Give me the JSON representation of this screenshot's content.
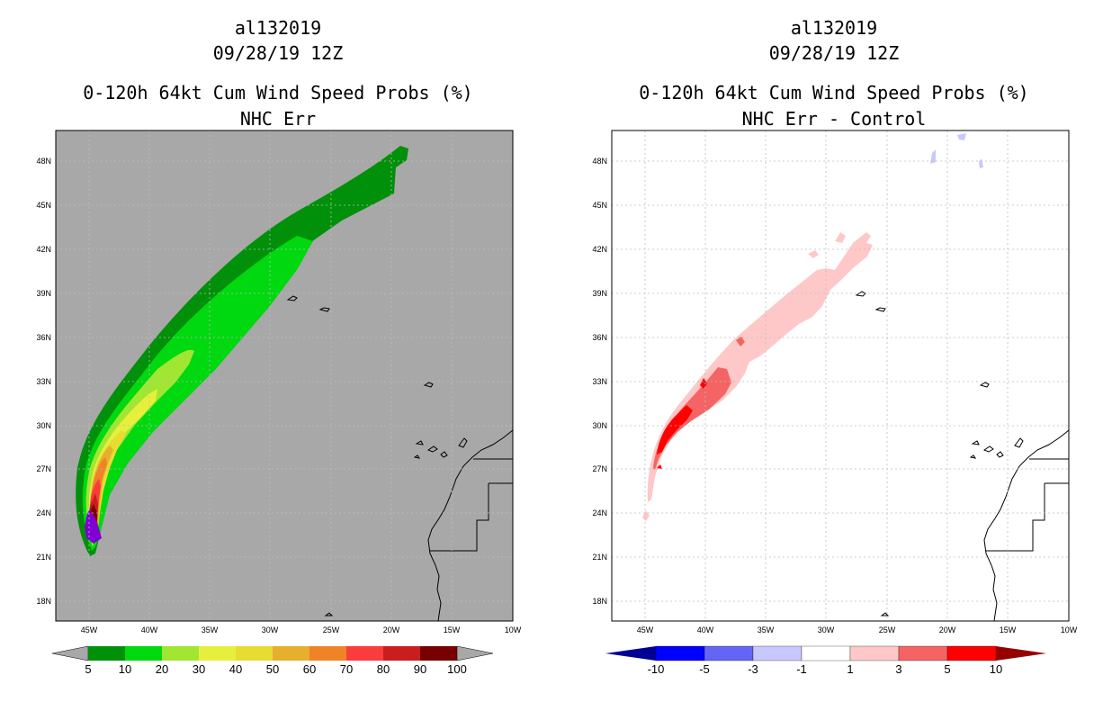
{
  "panels": [
    {
      "storm_id": "al132019",
      "datetime": "09/28/19 12Z",
      "product": "0-120h 64kt Cum Wind Speed Probs (%)",
      "subtitle": "NHC Err",
      "colorbar": {
        "labels": [
          "5",
          "10",
          "20",
          "30",
          "40",
          "50",
          "60",
          "70",
          "80",
          "90",
          "100"
        ],
        "colors": [
          "#00900a",
          "#00d80f",
          "#a0e632",
          "#e6f03c",
          "#e6dc32",
          "#e6af2d",
          "#f08228",
          "#fa3c3c",
          "#c81e1e",
          "#780000",
          "#8000d2"
        ]
      },
      "chart_data": {
        "type": "heatmap",
        "title": "0-120h 64kt Cum Wind Speed Probs (%)",
        "xlim": [
          -47,
          -10
        ],
        "ylim": [
          17,
          50
        ],
        "x_ticks": [
          "45W",
          "40W",
          "35W",
          "30W",
          "25W",
          "20W",
          "15W",
          "10W"
        ],
        "y_ticks": [
          "18N",
          "21N",
          "24N",
          "27N",
          "30N",
          "33N",
          "36N",
          "39N",
          "42N",
          "45N",
          "48N"
        ],
        "grid": true,
        "background": "#a8a8a8",
        "levels": [
          5,
          10,
          20,
          30,
          40,
          50,
          60,
          70,
          80,
          90,
          100
        ],
        "swath_peak": {
          "lon": -44.5,
          "lat": 22.3,
          "value": 100
        },
        "swath_end": {
          "lon": -18.5,
          "lat": 48.8,
          "value": 5
        }
      }
    },
    {
      "storm_id": "al132019",
      "datetime": "09/28/19 12Z",
      "product": "0-120h 64kt Cum Wind Speed Probs (%)",
      "subtitle": "NHC Err - Control",
      "colorbar": {
        "labels": [
          "-10",
          "-5",
          "-3",
          "-1",
          "1",
          "3",
          "5",
          "10"
        ],
        "colors": [
          "#000096",
          "#0000ff",
          "#6464f5",
          "#c8c8ff",
          "#ffffff",
          "#ffc8c8",
          "#f56464",
          "#ff0000",
          "#960000"
        ]
      },
      "chart_data": {
        "type": "heatmap",
        "title": "0-120h 64kt Cum Wind Speed Probs (%)",
        "xlim": [
          -47,
          -10
        ],
        "ylim": [
          17,
          50
        ],
        "x_ticks": [
          "45W",
          "40W",
          "35W",
          "30W",
          "25W",
          "20W",
          "15W",
          "10W"
        ],
        "y_ticks": [
          "18N",
          "21N",
          "24N",
          "27N",
          "30N",
          "33N",
          "36N",
          "39N",
          "42N",
          "45N",
          "48N"
        ],
        "grid": true,
        "background": "#ffffff",
        "levels": [
          -10,
          -5,
          -3,
          -1,
          1,
          3,
          5,
          10
        ],
        "max_difference": {
          "lon": -41.5,
          "lat": 29.5,
          "value": 5
        }
      }
    }
  ]
}
